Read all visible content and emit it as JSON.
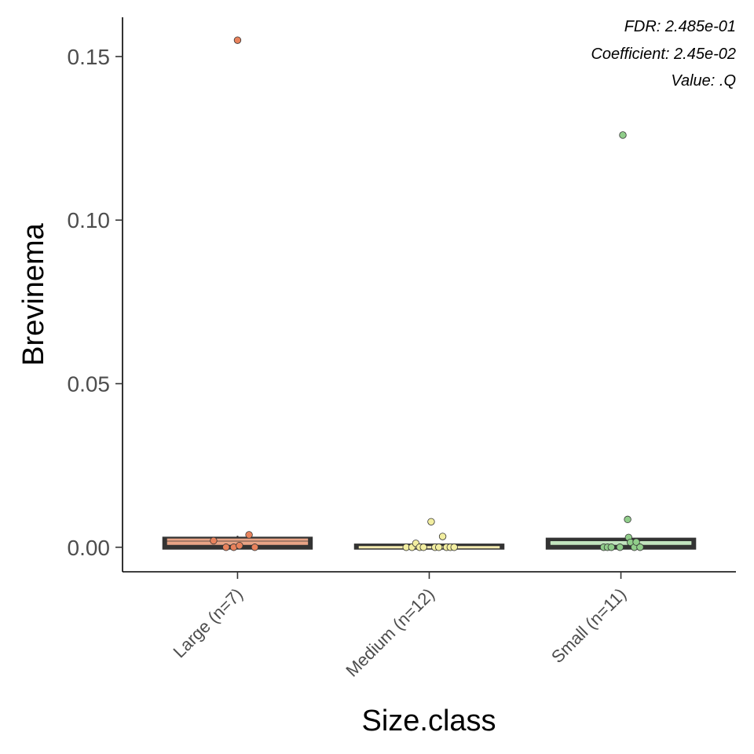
{
  "chart_data": {
    "type": "box",
    "xlabel": "Size.class",
    "ylabel": "Brevinema",
    "ylim": [
      -0.0075,
      0.162
    ],
    "yticks": [
      0.0,
      0.05,
      0.1,
      0.15
    ],
    "ytick_labels": [
      "0.00",
      "0.05",
      "0.10",
      "0.15"
    ],
    "categories": [
      "Large (n=7)",
      "Medium (n=12)",
      "Small (n=11)"
    ],
    "groups": [
      {
        "label": "Large (n=7)",
        "fill": "#e9a486",
        "point_color": "#e8825c",
        "q1": 0.0,
        "median": 0.0023,
        "q3": 0.0025,
        "whisker_low": 0.0,
        "whisker_high": 0.0035,
        "points": [
          {
            "jitter": -0.25,
            "y": 0.002
          },
          {
            "jitter": -0.12,
            "y": 0.0
          },
          {
            "jitter": -0.04,
            "y": 0.0
          },
          {
            "jitter": 0.02,
            "y": 0.0005
          },
          {
            "jitter": 0.12,
            "y": 0.0038
          },
          {
            "jitter": 0.18,
            "y": 0.0
          },
          {
            "jitter": 0.0,
            "y": 0.155
          }
        ]
      },
      {
        "label": "Medium (n=12)",
        "fill": "#f4ebb0",
        "point_color": "#f2eea0",
        "q1": 0.0,
        "median": 0.0,
        "q3": 0.0004,
        "whisker_low": 0.0,
        "whisker_high": 0.0005,
        "points": [
          {
            "jitter": -0.24,
            "y": 0.0
          },
          {
            "jitter": -0.18,
            "y": 0.0
          },
          {
            "jitter": -0.14,
            "y": 0.0012
          },
          {
            "jitter": -0.1,
            "y": 0.0
          },
          {
            "jitter": -0.06,
            "y": 0.0
          },
          {
            "jitter": 0.02,
            "y": 0.0078
          },
          {
            "jitter": 0.06,
            "y": 0.0
          },
          {
            "jitter": 0.1,
            "y": 0.0
          },
          {
            "jitter": 0.14,
            "y": 0.0033
          },
          {
            "jitter": 0.18,
            "y": 0.0
          },
          {
            "jitter": 0.22,
            "y": 0.0
          },
          {
            "jitter": 0.26,
            "y": 0.0
          }
        ]
      },
      {
        "label": "Small (n=11)",
        "fill": "#c2e4be",
        "point_color": "#90cd8a",
        "q1": 0.0,
        "median": 0.0015,
        "q3": 0.0022,
        "whisker_low": 0.0,
        "whisker_high": 0.0028,
        "points": [
          {
            "jitter": -0.18,
            "y": 0.0
          },
          {
            "jitter": -0.14,
            "y": 0.0
          },
          {
            "jitter": -0.1,
            "y": 0.0
          },
          {
            "jitter": -0.01,
            "y": 0.0
          },
          {
            "jitter": 0.07,
            "y": 0.0085
          },
          {
            "jitter": 0.08,
            "y": 0.003
          },
          {
            "jitter": 0.1,
            "y": 0.0015
          },
          {
            "jitter": 0.14,
            "y": 0.0
          },
          {
            "jitter": 0.16,
            "y": 0.0016
          },
          {
            "jitter": 0.2,
            "y": 0.0
          },
          {
            "jitter": 0.02,
            "y": 0.126
          }
        ]
      }
    ],
    "annotations": [
      "FDR: 2.485e-01",
      "Coefficient: 2.45e-02",
      "Value: .Q"
    ],
    "grid": false,
    "legend": "none"
  }
}
